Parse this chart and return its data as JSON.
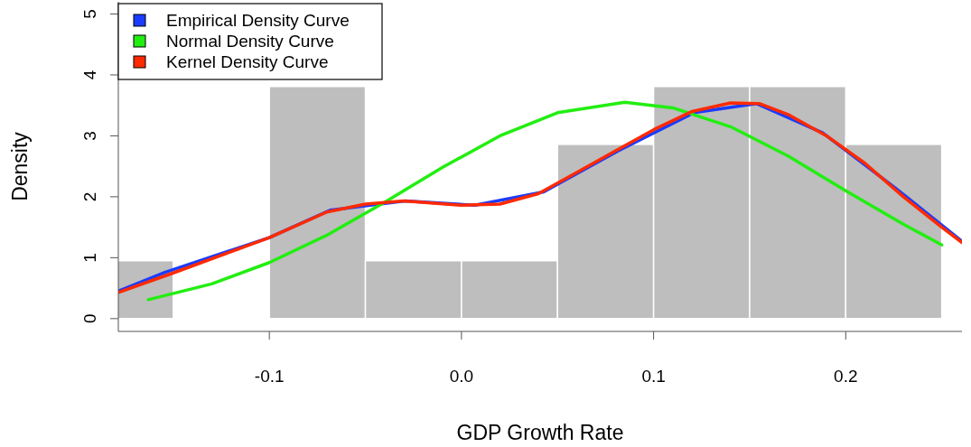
{
  "chart_data": {
    "type": "histogram",
    "xlabel": "GDP Growth Rate",
    "ylabel": "Density",
    "bins": [
      -0.2,
      -0.15,
      -0.1,
      -0.05,
      0,
      0.05,
      0.1,
      0.15,
      0.2,
      0.25
    ],
    "values": [
      0.95,
      0,
      3.81,
      0.95,
      0.95,
      2.86,
      3.81,
      3.81,
      2.86
    ],
    "color": "#bebebe",
    "series": [
      {
        "type": "line",
        "name": "Empirical Density Curve",
        "color": "#1a3cff",
        "x": [
          -0.1786,
          -0.1544,
          -0.1,
          -0.0684,
          -0.0293,
          0.007,
          0.0428,
          0.0814,
          0.121,
          0.1535,
          0.188,
          0.2256,
          0.2605
        ],
        "values": [
          0.45,
          0.76,
          1.33,
          1.78,
          1.93,
          1.86,
          2.08,
          2.75,
          3.38,
          3.53,
          3.05,
          2.15,
          1.27
        ]
      },
      {
        "type": "line",
        "name": "Normal Density Curve",
        "color": "#22ee11",
        "x": [
          -0.163,
          -0.13,
          -0.1,
          -0.07,
          -0.04,
          -0.01,
          0.02,
          0.05,
          0.085,
          0.11,
          0.14,
          0.17,
          0.2,
          0.23,
          0.25
        ],
        "values": [
          0.31,
          0.57,
          0.92,
          1.37,
          1.91,
          2.48,
          3.0,
          3.38,
          3.55,
          3.46,
          3.15,
          2.67,
          2.1,
          1.55,
          1.21
        ]
      },
      {
        "type": "line",
        "name": "Kernel Density Curve",
        "color": "#ff2a00",
        "x": [
          -0.1786,
          -0.15,
          -0.1,
          -0.07,
          -0.05,
          -0.03,
          0,
          0.02,
          0.04,
          0.06,
          0.08,
          0.1,
          0.12,
          0.14,
          0.155,
          0.17,
          0.19,
          0.21,
          0.23,
          0.25,
          0.2605
        ],
        "values": [
          0.43,
          0.75,
          1.33,
          1.75,
          1.88,
          1.93,
          1.86,
          1.88,
          2.05,
          2.4,
          2.75,
          3.1,
          3.4,
          3.54,
          3.53,
          3.35,
          3.0,
          2.55,
          2.0,
          1.5,
          1.25
        ]
      }
    ],
    "xlim": [
      -0.1786,
      0.2605
    ],
    "ylim": [
      -0.21,
      5.2
    ],
    "xticks": [
      -0.1,
      {
        "value": 0,
        "label": "0.0"
      },
      0.1,
      0.2
    ],
    "yticks": [
      0,
      1,
      2,
      3,
      4,
      5
    ],
    "grid": false,
    "legend": "top left"
  }
}
